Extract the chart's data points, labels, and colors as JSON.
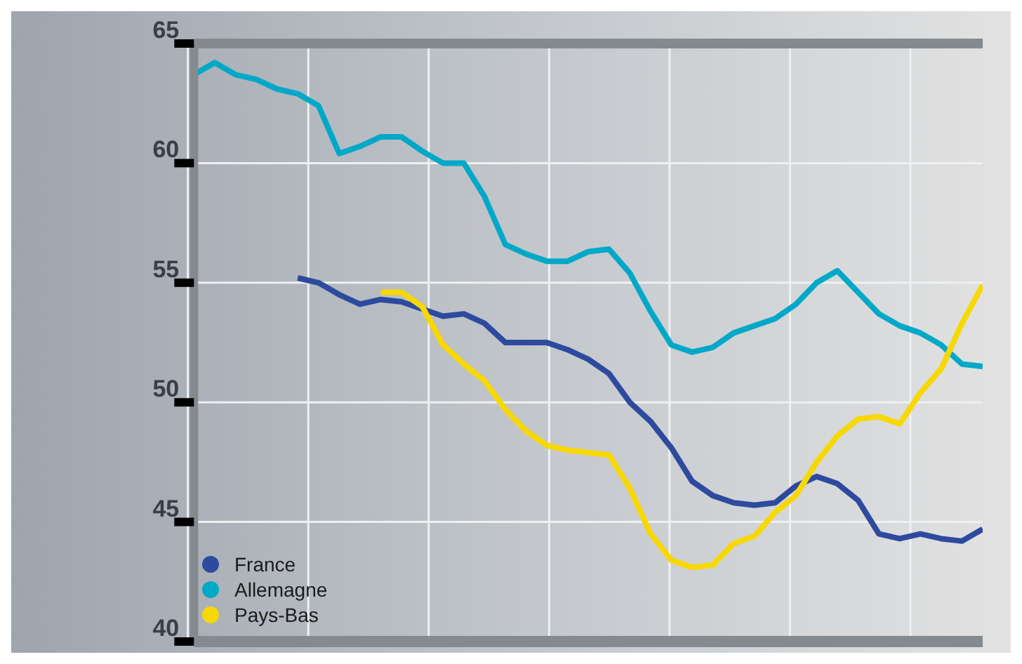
{
  "chart_data": {
    "type": "line",
    "categories": [
      null,
      null,
      null,
      null,
      null,
      null,
      null,
      null,
      null,
      null,
      null,
      null,
      null,
      null,
      null,
      null,
      null,
      null,
      null,
      null,
      null,
      null,
      null,
      null,
      null,
      null,
      null,
      null,
      null,
      null,
      null,
      null,
      null,
      null,
      null,
      null,
      null,
      null,
      null
    ],
    "series": [
      {
        "name": "France",
        "color": "#2e4a9e",
        "values": [
          null,
          null,
          null,
          null,
          null,
          55.2,
          55.0,
          54.5,
          54.1,
          54.3,
          54.2,
          53.9,
          53.6,
          53.7,
          53.3,
          52.5,
          52.5,
          52.5,
          52.2,
          51.8,
          51.2,
          50.0,
          49.2,
          48.1,
          46.7,
          46.1,
          45.8,
          45.7,
          45.8,
          46.5,
          46.9,
          46.6,
          45.9,
          44.5,
          44.3,
          44.5,
          44.3,
          44.2,
          44.7
        ]
      },
      {
        "name": "Allemagne",
        "color": "#00a8c8",
        "values": [
          63.7,
          64.2,
          63.7,
          63.5,
          63.1,
          62.9,
          62.4,
          60.4,
          60.7,
          61.1,
          61.1,
          60.5,
          60.0,
          60.0,
          58.6,
          56.6,
          56.2,
          55.9,
          55.9,
          56.3,
          56.4,
          55.4,
          53.8,
          52.4,
          52.1,
          52.3,
          52.9,
          53.2,
          53.5,
          54.1,
          55.0,
          55.5,
          54.6,
          53.7,
          53.2,
          52.9,
          52.4,
          51.6,
          51.5
        ]
      },
      {
        "name": "Pays-Bas",
        "color": "#f7d800",
        "values": [
          null,
          null,
          null,
          null,
          null,
          null,
          null,
          null,
          null,
          54.6,
          54.6,
          54.0,
          52.4,
          51.6,
          50.9,
          49.7,
          48.8,
          48.2,
          48.0,
          47.9,
          47.8,
          46.4,
          44.5,
          43.4,
          43.1,
          43.2,
          44.1,
          44.4,
          45.4,
          46.1,
          47.5,
          48.6,
          49.3,
          49.4,
          49.1,
          50.4,
          51.4,
          53.3,
          54.9
        ]
      }
    ],
    "ylim": [
      40,
      65
    ],
    "yticks": [
      40,
      45,
      50,
      55,
      60,
      65
    ],
    "grid": true,
    "legend": "bottom left",
    "marker": "none",
    "line_style": "solid"
  }
}
